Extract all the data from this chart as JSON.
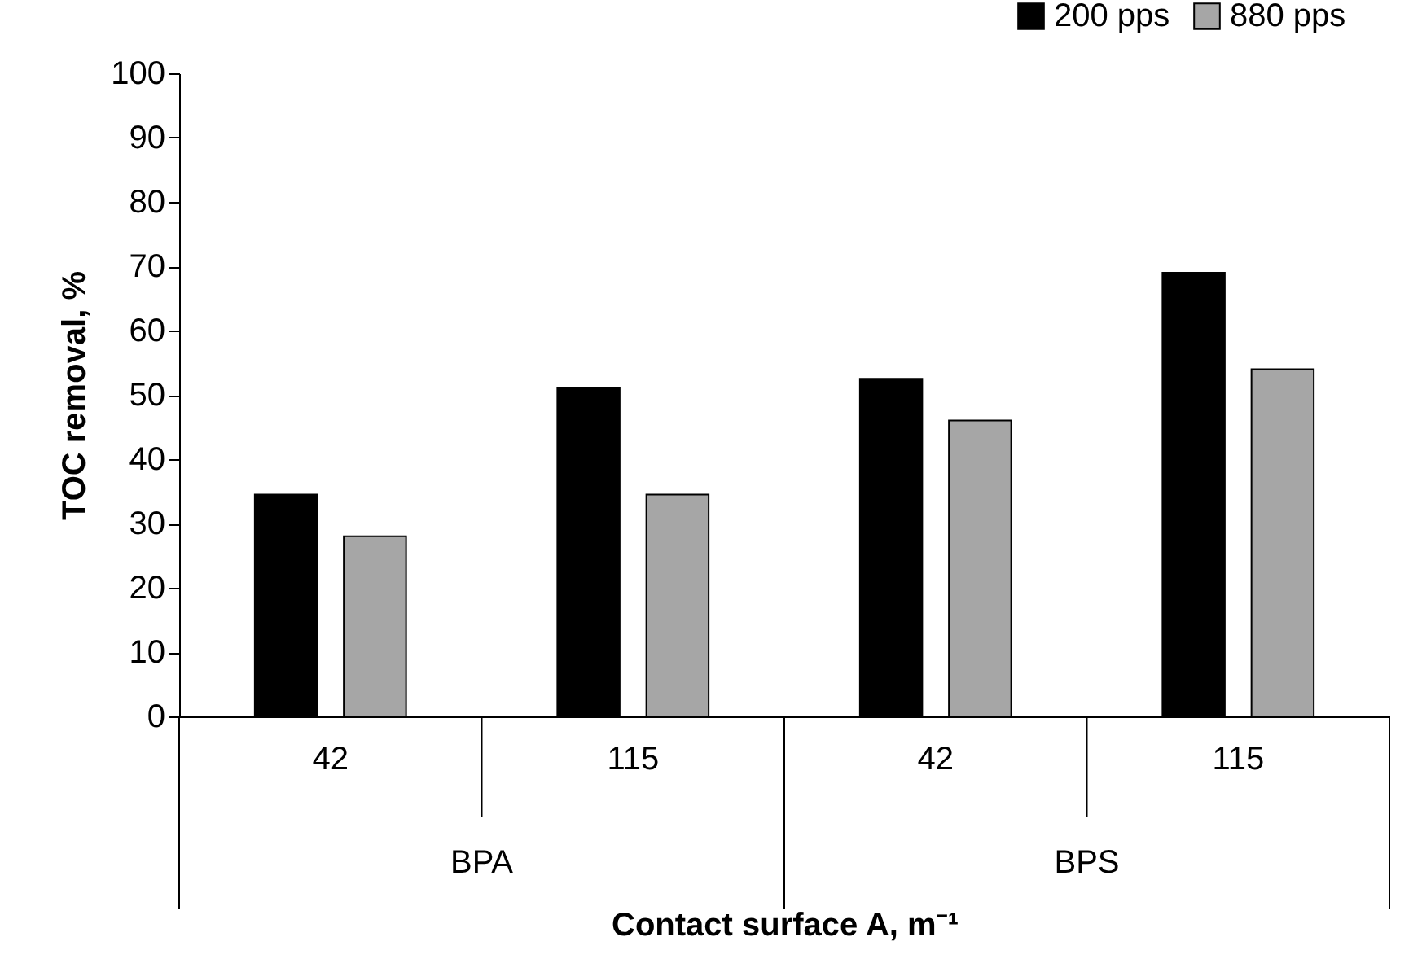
{
  "chart_data": {
    "type": "bar",
    "xlabel": "Contact surface A, m⁻¹",
    "ylabel": "TOC removal, %",
    "categories": [
      "42",
      "115",
      "42",
      "115"
    ],
    "series": [
      {
        "name": "200 pps",
        "color": "#000000",
        "values": [
          34.5,
          51,
          52.5,
          69
        ]
      },
      {
        "name": "880 pps",
        "color": "#a6a6a6",
        "values": [
          28,
          34.5,
          46,
          54
        ]
      }
    ],
    "ylim": [
      0,
      100
    ],
    "yticks": [
      0,
      10,
      20,
      30,
      40,
      50,
      60,
      70,
      80,
      90,
      100
    ],
    "grid": false,
    "legend": "top right",
    "annotations": [
      "BPA",
      "BPS"
    ]
  }
}
